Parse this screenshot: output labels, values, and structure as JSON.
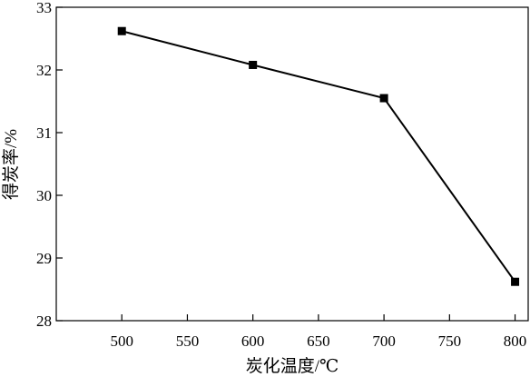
{
  "chart_data": {
    "type": "line",
    "title": "",
    "xlabel": "炭化温度/℃",
    "ylabel": "得炭率/%",
    "xlim": [
      450,
      810
    ],
    "ylim": [
      28,
      33
    ],
    "xticks": [
      500,
      550,
      600,
      650,
      700,
      750,
      800
    ],
    "yticks": [
      28,
      29,
      30,
      31,
      32,
      33
    ],
    "grid": false,
    "legend": "none",
    "series": [
      {
        "x": [
          500,
          600,
          700,
          800
        ],
        "y": [
          32.62,
          32.08,
          31.55,
          28.62
        ],
        "marker": "square",
        "color": "#000000"
      }
    ]
  }
}
